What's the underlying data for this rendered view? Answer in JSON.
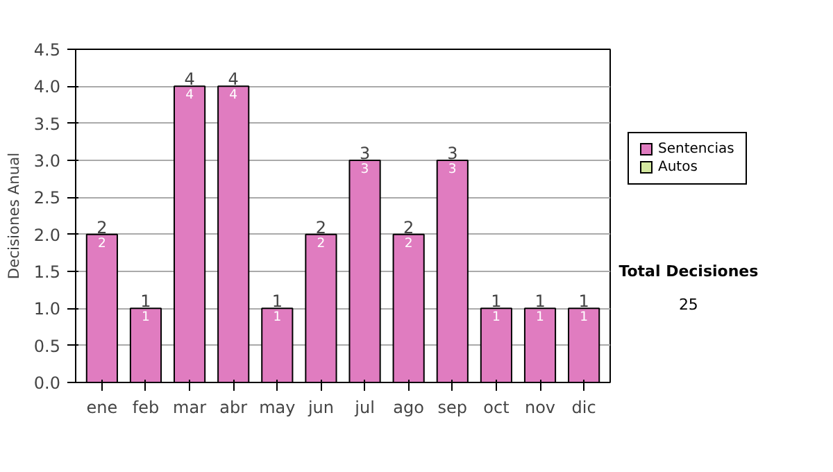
{
  "chart_data": {
    "type": "bar",
    "stacked": true,
    "ylabel": "Decisiones Anual",
    "categories": [
      "ene",
      "feb",
      "mar",
      "abr",
      "may",
      "jun",
      "jul",
      "ago",
      "sep",
      "oct",
      "nov",
      "dic"
    ],
    "series": [
      {
        "name": "Sentencias",
        "color": "#e07cc0",
        "values": [
          2,
          1,
          4,
          4,
          1,
          2,
          3,
          2,
          3,
          1,
          1,
          1
        ],
        "value_labels": [
          "2",
          "1",
          "4",
          "4",
          "1",
          "2",
          "3",
          "2",
          "3",
          "1",
          "1",
          "1"
        ]
      },
      {
        "name": "Autos",
        "color": "#d4e8a0",
        "values": [
          0,
          0,
          0,
          0,
          0,
          0,
          0,
          0,
          0,
          0,
          0,
          0
        ]
      }
    ],
    "totals": [
      "2",
      "1",
      "4",
      "4",
      "1",
      "2",
      "3",
      "2",
      "3",
      "1",
      "1",
      "1"
    ],
    "ylim": [
      0,
      4.5
    ],
    "yticks": [
      {
        "value": 0,
        "label": "0.0"
      },
      {
        "value": 0.5,
        "label": "0.5"
      },
      {
        "value": 1,
        "label": "1.0"
      },
      {
        "value": 1.5,
        "label": "1.5"
      },
      {
        "value": 2,
        "label": "2.0"
      },
      {
        "value": 2.5,
        "label": "2.5"
      },
      {
        "value": 3,
        "label": "3.0"
      },
      {
        "value": 3.5,
        "label": "3.5"
      },
      {
        "value": 4,
        "label": "4.0"
      },
      {
        "value": 4.5,
        "label": "4.5"
      }
    ],
    "grid": "y",
    "legend": "right",
    "annotations": [
      "Total Decisiones",
      "25"
    ]
  }
}
